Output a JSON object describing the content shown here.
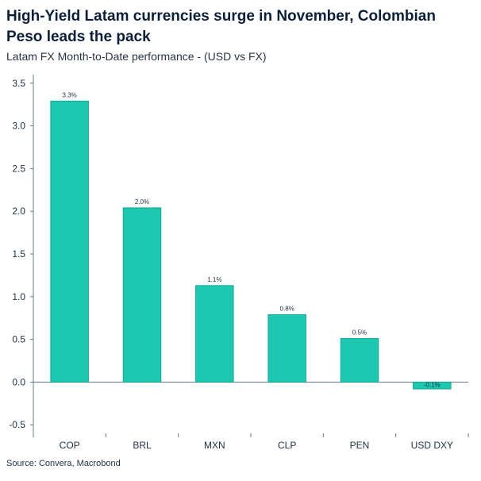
{
  "chart_data": {
    "type": "bar",
    "title": "High-Yield Latam currencies surge in November, Colombian Peso leads the pack",
    "subtitle": "Latam FX Month-to-Date performance - (USD vs FX)",
    "source": "Source: Convera, Macrobond",
    "categories": [
      "COP",
      "BRL",
      "MXN",
      "CLP",
      "PEN",
      "USD DXY"
    ],
    "values": [
      3.29,
      2.04,
      1.13,
      0.79,
      0.51,
      -0.08
    ],
    "data_labels": [
      "3.3%",
      "2.0%",
      "1.1%",
      "0.8%",
      "0.5%",
      "-0.1%"
    ],
    "y_ticks": [
      "-0.5",
      "0.0",
      "0.5",
      "1.0",
      "1.5",
      "2.0",
      "2.5",
      "3.0",
      "3.5"
    ],
    "ylim": [
      -0.6,
      3.6
    ],
    "grid": false,
    "legend": "none",
    "colors": {
      "bar": "#1cc9b0",
      "bar_stroke": "#12a892",
      "axis": "#6b7785",
      "text": "#1f2f45"
    }
  }
}
